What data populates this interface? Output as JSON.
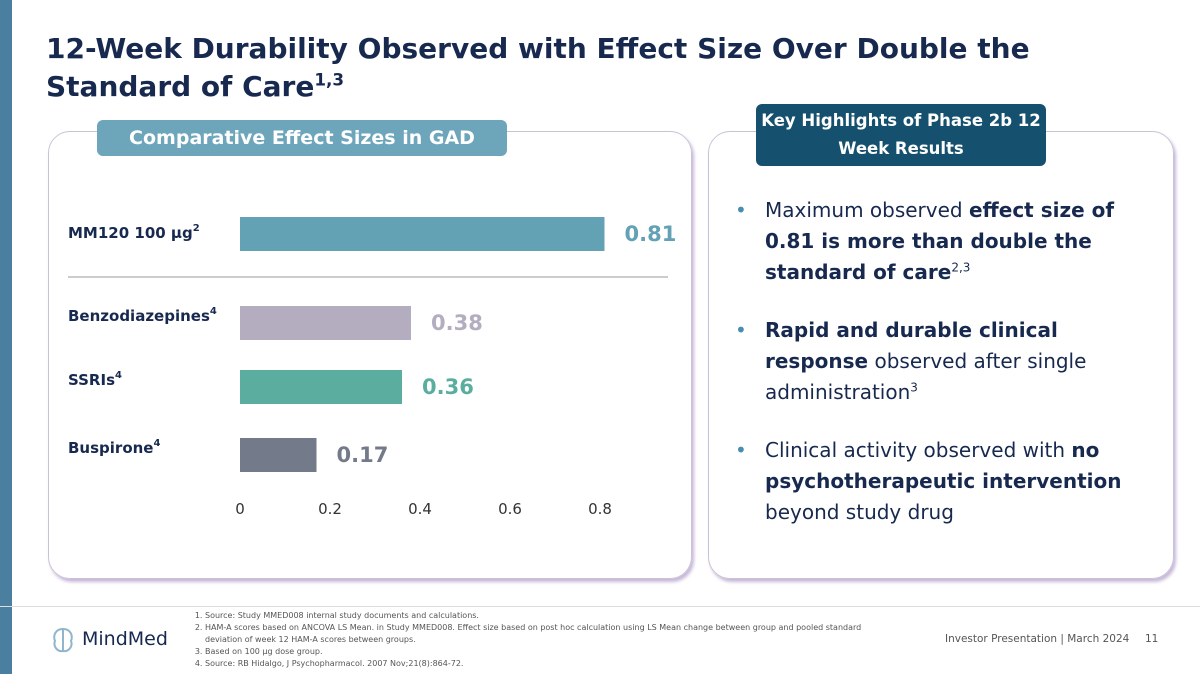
{
  "title": "12-Week Durability Observed with Effect Size Over Double the Standard of Care",
  "title_note": "1,3",
  "left_panel_header": "Comparative Effect Sizes in GAD",
  "right_panel_header": "Key Highlights of Phase 2b 12 Week Results",
  "chart_data": {
    "type": "bar",
    "orientation": "horizontal",
    "categories": [
      "MM120 100 µg",
      "Benzodiazepines",
      "SSRIs",
      "Buspirone"
    ],
    "category_notes": [
      "2",
      "4",
      "4",
      "4"
    ],
    "values": [
      0.81,
      0.38,
      0.36,
      0.17
    ],
    "colors": [
      "#63a1b5",
      "#b3adbf",
      "#5bae9f",
      "#737a8a"
    ],
    "xlim": [
      0,
      0.9
    ],
    "xticks": [
      0,
      0.2,
      0.4,
      0.6,
      0.8
    ]
  },
  "highlights": [
    {
      "segments": [
        {
          "text": "Maximum observed ",
          "bold": false
        },
        {
          "text": "effect size of 0.81 is more than double the standard of care",
          "bold": true
        }
      ],
      "note": "2,3"
    },
    {
      "segments": [
        {
          "text": "Rapid and durable clinical response",
          "bold": true
        },
        {
          "text": " observed after single administration",
          "bold": false
        }
      ],
      "note": "3"
    },
    {
      "segments": [
        {
          "text": "Clinical activity observed with ",
          "bold": false
        },
        {
          "text": "no psychotherapeutic intervention",
          "bold": true
        },
        {
          "text": " beyond study drug",
          "bold": false
        }
      ],
      "note": null
    }
  ],
  "footnotes": [
    "Source: Study MMED008 internal study documents and calculations.",
    "HAM-A scores based on ANCOVA LS Mean. in Study MMED008. Effect size based on post hoc calculation using LS Mean change between group and pooled standard deviation of week 12 HAM-A scores between groups.",
    "Based on 100 µg dose group.",
    "Source:  RB Hidalgo, J Psychopharmacol. 2007 Nov;21(8):864-72."
  ],
  "brand": "MindMed",
  "footer_text": "Investor Presentation | March 2024",
  "page_number": "11"
}
